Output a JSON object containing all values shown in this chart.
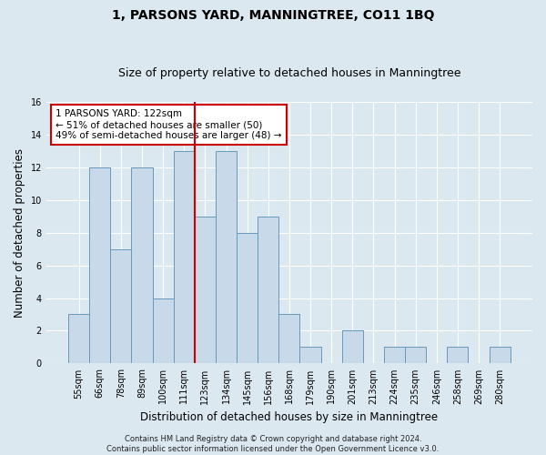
{
  "title": "1, PARSONS YARD, MANNINGTREE, CO11 1BQ",
  "subtitle": "Size of property relative to detached houses in Manningtree",
  "xlabel": "Distribution of detached houses by size in Manningtree",
  "ylabel": "Number of detached properties",
  "categories": [
    "55sqm",
    "66sqm",
    "78sqm",
    "89sqm",
    "100sqm",
    "111sqm",
    "123sqm",
    "134sqm",
    "145sqm",
    "156sqm",
    "168sqm",
    "179sqm",
    "190sqm",
    "201sqm",
    "213sqm",
    "224sqm",
    "235sqm",
    "246sqm",
    "258sqm",
    "269sqm",
    "280sqm"
  ],
  "values": [
    3,
    12,
    7,
    12,
    4,
    13,
    9,
    13,
    8,
    9,
    3,
    1,
    0,
    2,
    0,
    1,
    1,
    0,
    1,
    0,
    1
  ],
  "bar_color": "#c8d9ea",
  "bar_edge_color": "#6699bb",
  "vline_color": "#cc0000",
  "vline_x_idx": 6,
  "annotation_line1": "1 PARSONS YARD: 122sqm",
  "annotation_line2": "← 51% of detached houses are smaller (50)",
  "annotation_line3": "49% of semi-detached houses are larger (48) →",
  "annotation_box_color": "#ffffff",
  "annotation_box_edge_color": "#cc0000",
  "footer_line1": "Contains HM Land Registry data © Crown copyright and database right 2024.",
  "footer_line2": "Contains public sector information licensed under the Open Government Licence v3.0.",
  "ylim": [
    0,
    16
  ],
  "yticks": [
    0,
    2,
    4,
    6,
    8,
    10,
    12,
    14,
    16
  ],
  "background_color": "#dce8f0",
  "grid_color": "#ffffff",
  "title_fontsize": 10,
  "subtitle_fontsize": 9,
  "axis_label_fontsize": 8.5,
  "tick_fontsize": 7,
  "annotation_fontsize": 7.5,
  "footer_fontsize": 6
}
